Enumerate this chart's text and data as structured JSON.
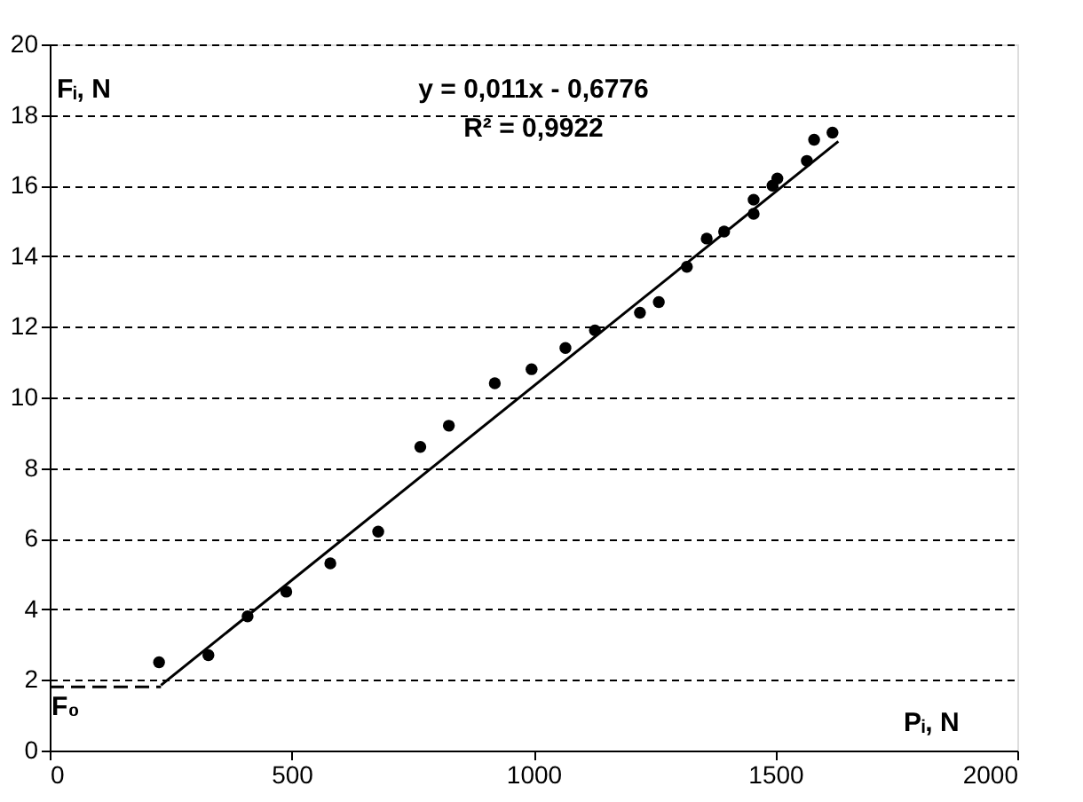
{
  "chart_data": {
    "type": "scatter",
    "xlabel": "Pᵢ, N",
    "ylabel": "Fᵢ, N",
    "xlim": [
      0,
      2000
    ],
    "xticks": [
      0,
      500,
      1000,
      1500,
      2000
    ],
    "ylim": [
      0,
      20
    ],
    "yticks": [
      0,
      2,
      4,
      6,
      8,
      10,
      12,
      14,
      16,
      18,
      20
    ],
    "grid": "y",
    "series": [
      {
        "marker": "circle",
        "color": "#000000",
        "x": [
          226,
          328,
          409,
          489,
          580,
          679,
          766,
          825,
          920,
          996,
          1066,
          1127,
          1220,
          1259,
          1317,
          1358,
          1394,
          1455,
          1455,
          1494,
          1504,
          1565,
          1580,
          1618
        ],
        "values": [
          2.5,
          2.7,
          3.8,
          4.5,
          5.3,
          6.2,
          8.6,
          9.2,
          10.4,
          10.8,
          11.4,
          11.9,
          12.4,
          12.7,
          13.7,
          14.5,
          14.7,
          15.2,
          15.6,
          16.0,
          16.2,
          16.7,
          17.3,
          17.5
        ]
      },
      {
        "type": "line",
        "color": "#000000",
        "line_style": "solid",
        "x": [
          230,
          1630
        ],
        "values": [
          1.85,
          17.25
        ]
      },
      {
        "type": "line",
        "color": "#000000",
        "line_style": "dashed",
        "x": [
          0,
          230
        ],
        "values": [
          1.8,
          1.8
        ]
      }
    ],
    "annotations": [
      "y = 0,011x  - 0,6776",
      "R² = 0,9922",
      {
        "text": "F₀",
        "x": 0,
        "y": 1.8
      }
    ]
  }
}
